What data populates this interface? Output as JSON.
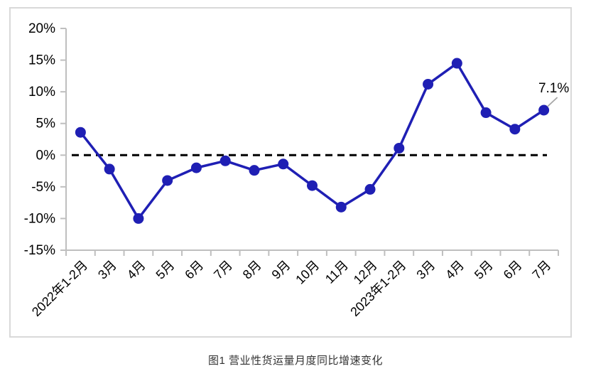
{
  "figure": {
    "caption": "图1 营业性货运量月度同比增速变化"
  },
  "chart_data": {
    "type": "line",
    "title": "图1 营业性货运量月度同比增速变化",
    "categories": [
      "2022年1-2月",
      "3月",
      "4月",
      "5月",
      "6月",
      "7月",
      "8月",
      "9月",
      "10月",
      "11月",
      "12月",
      "2023年1-2月",
      "3月",
      "4月",
      "5月",
      "6月",
      "7月"
    ],
    "series": [
      {
        "name": "营业性货运量月度同比增速",
        "values": [
          3.6,
          -2.2,
          -10.0,
          -4.0,
          -2.0,
          -0.9,
          -2.4,
          -1.4,
          -4.8,
          -8.2,
          -5.4,
          1.1,
          11.2,
          14.5,
          6.7,
          4.1,
          7.1
        ]
      }
    ],
    "ylim": [
      -15,
      20
    ],
    "yticks": [
      20,
      15,
      10,
      5,
      0,
      -5,
      -10,
      -15
    ],
    "ytick_labels": [
      "20%",
      "15%",
      "10%",
      "5%",
      "0%",
      "-5%",
      "-10%",
      "-15%"
    ],
    "xlabel": "",
    "ylabel": "",
    "grid": false,
    "legend_position": "none",
    "zero_line_style": "dashed",
    "end_label": "7.1%",
    "colors": {
      "line": "#1f1fb4",
      "marker": "#1f1fb4",
      "axis": "#bfbfbf",
      "zero_line": "#000000",
      "tick_text": "#000000",
      "end_label_text": "#000000",
      "leader": "#a6a6a6",
      "frame_border": "#d9d9d9"
    }
  }
}
